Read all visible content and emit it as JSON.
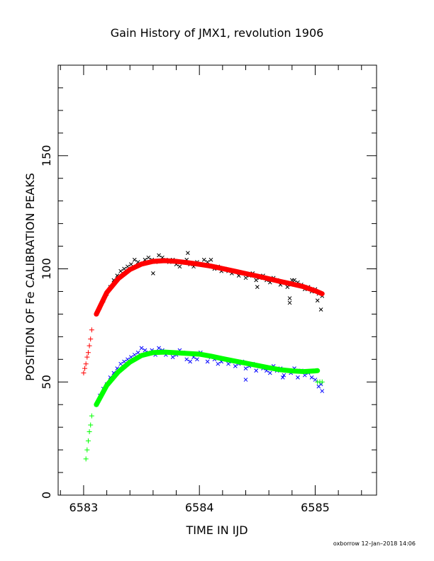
{
  "chart_data": {
    "type": "scatter",
    "title": "Gain History of JMX1, revolution 1906",
    "xlabel": "TIME IN IJD",
    "ylabel": "POSITION OF Fe CALIBRATION PEAKS",
    "xlim": [
      6582.78,
      6585.53
    ],
    "ylim": [
      0,
      190
    ],
    "x_ticks": [
      6583,
      6584,
      6585
    ],
    "x_tick_labels": [
      "6583",
      "6584",
      "6585"
    ],
    "y_ticks": [
      0,
      50,
      100,
      150
    ],
    "y_tick_labels": [
      "0",
      "50",
      "100",
      "150"
    ],
    "grid": false,
    "legend": "none",
    "footer": "oxborrow 12–Jan–2018 14:06",
    "series": [
      {
        "marker": "x",
        "color": "#000000",
        "x": [
          6583.11,
          6583.14,
          6583.17,
          6583.2,
          6583.23,
          6583.26,
          6583.29,
          6583.32,
          6583.35,
          6583.38,
          6583.41,
          6583.44,
          6583.47,
          6583.5,
          6583.53,
          6583.56,
          6583.59,
          6583.62,
          6583.65,
          6583.68,
          6583.71,
          6583.74,
          6583.77,
          6583.8,
          6583.83,
          6583.86,
          6583.89,
          6583.92,
          6583.95,
          6583.98,
          6584.01,
          6584.04,
          6584.07,
          6584.1,
          6584.13,
          6584.16,
          6584.19,
          6584.22,
          6584.25,
          6584.28,
          6584.31,
          6584.34,
          6584.37,
          6584.4,
          6584.43,
          6584.46,
          6584.49,
          6584.52,
          6584.55,
          6584.58,
          6584.61,
          6584.64,
          6584.67,
          6584.7,
          6584.73,
          6584.76,
          6584.79,
          6584.82,
          6584.85,
          6584.88,
          6584.91,
          6584.94,
          6584.97,
          6585.0,
          6585.03,
          6585.06,
          6583.6,
          6583.9,
          6584.1,
          6584.5,
          6584.78,
          6584.78,
          6584.8,
          6585.02,
          6585.05
        ],
        "y": [
          80,
          83,
          86,
          89,
          92,
          95,
          97,
          99,
          100,
          101,
          102,
          104,
          103,
          102,
          104,
          105,
          104,
          103,
          106,
          105,
          104,
          103,
          104,
          102,
          101,
          103,
          104,
          102,
          101,
          103,
          102,
          104,
          103,
          101,
          100,
          101,
          99,
          100,
          99,
          98,
          99,
          97,
          98,
          96,
          97,
          98,
          95,
          96,
          97,
          95,
          94,
          96,
          95,
          93,
          94,
          92,
          93,
          95,
          94,
          93,
          91,
          92,
          90,
          91,
          89,
          88,
          98,
          107,
          104,
          92,
          85,
          87,
          95,
          86,
          82
        ]
      },
      {
        "marker": "line",
        "color": "#ff0000",
        "x": [
          6583.11,
          6583.2,
          6583.3,
          6583.4,
          6583.5,
          6583.6,
          6583.7,
          6583.8,
          6583.9,
          6584.0,
          6584.1,
          6584.2,
          6584.3,
          6584.4,
          6584.5,
          6584.6,
          6584.7,
          6584.8,
          6584.9,
          6585.0,
          6585.06
        ],
        "y": [
          80,
          89.5,
          95.7,
          99.7,
          102.1,
          103.3,
          103.6,
          103.3,
          102.7,
          102.0,
          101.2,
          100.1,
          99.0,
          97.9,
          96.8,
          95.6,
          94.4,
          93.3,
          92.1,
          90.3,
          89.0
        ]
      },
      {
        "marker": "+",
        "color": "#ff0000",
        "x": [
          6583.0,
          6583.01,
          6583.02,
          6583.03,
          6583.04,
          6583.05,
          6583.06,
          6583.07
        ],
        "y": [
          54,
          56,
          58,
          61,
          63,
          66,
          69,
          73
        ]
      },
      {
        "marker": "x",
        "color": "#0000ff",
        "x": [
          6583.11,
          6583.14,
          6583.17,
          6583.2,
          6583.23,
          6583.26,
          6583.29,
          6583.32,
          6583.35,
          6583.38,
          6583.41,
          6583.44,
          6583.47,
          6583.5,
          6583.53,
          6583.56,
          6583.59,
          6583.62,
          6583.65,
          6583.68,
          6583.71,
          6583.74,
          6583.77,
          6583.8,
          6583.83,
          6583.86,
          6583.89,
          6583.92,
          6583.95,
          6583.98,
          6584.01,
          6584.04,
          6584.07,
          6584.1,
          6584.13,
          6584.16,
          6584.19,
          6584.22,
          6584.25,
          6584.28,
          6584.31,
          6584.34,
          6584.37,
          6584.4,
          6584.43,
          6584.46,
          6584.49,
          6584.52,
          6584.55,
          6584.58,
          6584.61,
          6584.64,
          6584.67,
          6584.7,
          6584.73,
          6584.76,
          6584.79,
          6584.82,
          6584.85,
          6584.88,
          6584.91,
          6584.94,
          6584.97,
          6585.0,
          6585.03,
          6585.06,
          6584.4,
          6584.72,
          6585.05
        ],
        "y": [
          40,
          44,
          47,
          49,
          52,
          54,
          56,
          58,
          59,
          60,
          61,
          62,
          63,
          65,
          64,
          63,
          64,
          62,
          65,
          64,
          62,
          63,
          61,
          62,
          64,
          63,
          60,
          59,
          61,
          60,
          63,
          62,
          59,
          61,
          60,
          58,
          59,
          60,
          58,
          59,
          57,
          58,
          59,
          56,
          57,
          58,
          55,
          57,
          56,
          55,
          54,
          57,
          55,
          56,
          53,
          55,
          54,
          56,
          52,
          55,
          53,
          54,
          52,
          51,
          48,
          46,
          51,
          52,
          49
        ]
      },
      {
        "marker": "line",
        "color": "#00ff00",
        "x": [
          6583.11,
          6583.2,
          6583.3,
          6583.4,
          6583.5,
          6583.6,
          6583.7,
          6583.8,
          6583.9,
          6584.0,
          6584.1,
          6584.2,
          6584.3,
          6584.4,
          6584.5,
          6584.6,
          6584.7,
          6584.8,
          6584.9,
          6585.0,
          6585.02
        ],
        "y": [
          40,
          48.5,
          54.5,
          58.8,
          61.7,
          63.0,
          63.2,
          62.9,
          62.6,
          62.3,
          61.4,
          60.3,
          59.3,
          58.3,
          57.3,
          56.3,
          55.4,
          54.9,
          54.6,
          54.9,
          55.0
        ]
      },
      {
        "marker": "+",
        "color": "#00ff00",
        "x": [
          6583.02,
          6583.03,
          6583.04,
          6583.05,
          6583.06,
          6583.07,
          6585.02,
          6585.04,
          6585.06
        ],
        "y": [
          16,
          20,
          24,
          28,
          31,
          35,
          50,
          50,
          50
        ]
      }
    ]
  }
}
